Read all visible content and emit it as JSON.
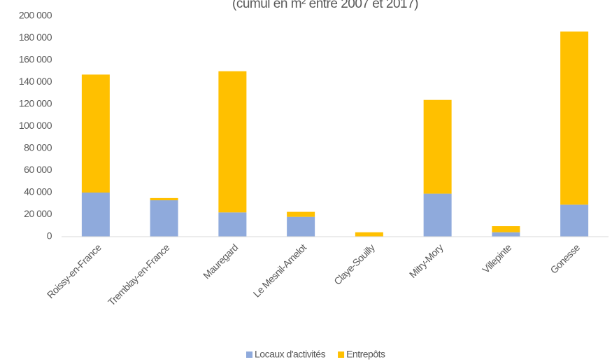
{
  "chart_data": {
    "type": "stacked_bar",
    "subtitle": "(cumul en m² entre 2007 et 2017)",
    "categories": [
      "Roissy-en-France",
      "Tremblay-en-France",
      "Mauregard",
      "Le Mesnil-Amelot",
      "Claye-Souilly",
      "Mitry-Mory",
      "Villepinte",
      "Gonesse"
    ],
    "series": [
      {
        "name": "Locaux d'activités",
        "color": "#8faadc",
        "values": [
          40000,
          33000,
          22000,
          18000,
          0,
          39000,
          4000,
          29000
        ]
      },
      {
        "name": "Entrepôts",
        "color": "#ffc000",
        "values": [
          107000,
          2000,
          128000,
          4500,
          4000,
          85000,
          5500,
          157000
        ]
      }
    ],
    "ylim": [
      0,
      200000
    ],
    "yticks": [
      0,
      {
        "value": 20000,
        "label": "20 000"
      },
      {
        "value": 40000,
        "label": "40 000"
      },
      {
        "value": 60000,
        "label": "60 000"
      },
      {
        "value": 80000,
        "label": "80 000"
      },
      {
        "value": 100000,
        "label": "100 000"
      },
      {
        "value": 120000,
        "label": "120 000"
      },
      {
        "value": 140000,
        "label": "140 000"
      },
      {
        "value": 160000,
        "label": "160 000"
      },
      {
        "value": 180000,
        "label": "180 000"
      },
      {
        "value": 200000,
        "label": "200 000"
      }
    ],
    "grid": false,
    "legend": "bottom"
  }
}
